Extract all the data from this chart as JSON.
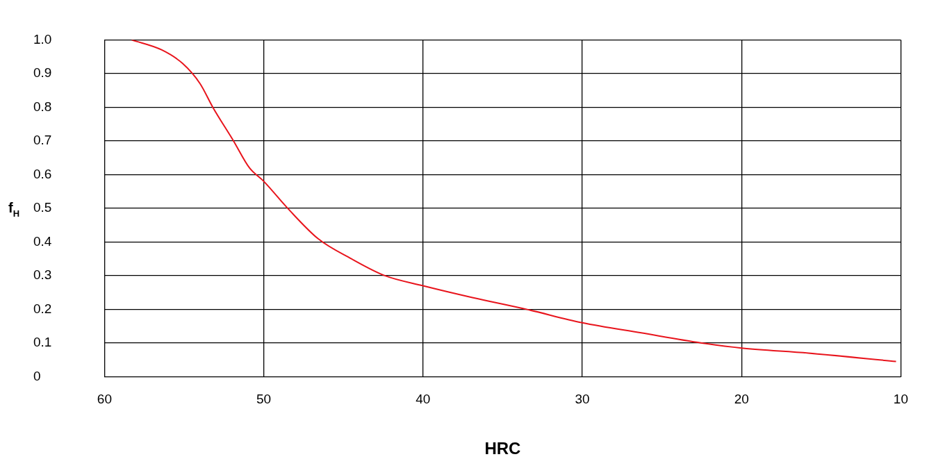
{
  "chart_data": {
    "type": "line",
    "xlabel": "HRC",
    "ylabel": "f$_{H}$",
    "xlim": [
      60,
      10
    ],
    "xticks": [
      60,
      50,
      40,
      30,
      20,
      10
    ],
    "ylim": [
      0,
      1
    ],
    "yticks": [
      0,
      0.1,
      0.2,
      0.3,
      0.4,
      0.5,
      0.6,
      0.7,
      0.8,
      0.9,
      {
        "value": 1,
        "label": "1.0"
      }
    ],
    "grid": true,
    "marker": "none",
    "line_style": "solid",
    "legend": false,
    "series": [
      {
        "color": "#e8141c",
        "x": [
          58.3,
          56.4,
          55.1,
          54.0,
          53.2,
          51.9,
          50.9,
          50,
          48.5,
          46.6,
          44.5,
          42.4,
          40,
          36.9,
          33.5,
          30,
          26.3,
          22.5,
          20,
          15.8,
          10.3
        ],
        "values": [
          1.0,
          0.97,
          0.93,
          0.87,
          0.8,
          0.7,
          0.62,
          0.58,
          0.5,
          0.41,
          0.35,
          0.3,
          0.27,
          0.235,
          0.2,
          0.16,
          0.13,
          0.1,
          0.085,
          0.07,
          0.045
        ]
      }
    ]
  }
}
